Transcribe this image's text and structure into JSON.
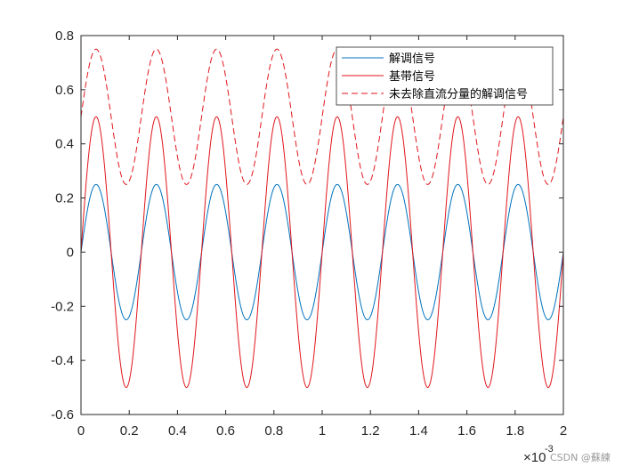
{
  "chart_data": {
    "type": "line",
    "title": "",
    "xlabel": "",
    "ylabel": "",
    "xlim": [
      0,
      2
    ],
    "ylim": [
      -0.6,
      0.8
    ],
    "x_exponent_label": "×10",
    "x_exponent_power": "-3",
    "xticks": [
      {
        "v": 0,
        "label": "0"
      },
      {
        "v": 0.2,
        "label": "0.2"
      },
      {
        "v": 0.4,
        "label": "0.4"
      },
      {
        "v": 0.6,
        "label": "0.6"
      },
      {
        "v": 0.8,
        "label": "0.8"
      },
      {
        "v": 1.0,
        "label": "1"
      },
      {
        "v": 1.2,
        "label": "1.2"
      },
      {
        "v": 1.4,
        "label": "1.4"
      },
      {
        "v": 1.6,
        "label": "1.6"
      },
      {
        "v": 1.8,
        "label": "1.8"
      },
      {
        "v": 2.0,
        "label": "2"
      }
    ],
    "yticks": [
      {
        "v": -0.6,
        "label": "-0.6"
      },
      {
        "v": -0.4,
        "label": "-0.4"
      },
      {
        "v": -0.2,
        "label": "-0.2"
      },
      {
        "v": 0,
        "label": "0"
      },
      {
        "v": 0.2,
        "label": "0.2"
      },
      {
        "v": 0.4,
        "label": "0.4"
      },
      {
        "v": 0.6,
        "label": "0.6"
      },
      {
        "v": 0.8,
        "label": "0.8"
      }
    ],
    "grid": false,
    "legend_position": "top-right",
    "series": [
      {
        "name": "解调信号",
        "color": "#0072BD",
        "style": "solid",
        "amplitude": 0.25,
        "offset": 0,
        "period": 0.25,
        "peak_at": 0.0625
      },
      {
        "name": "基带信号",
        "color": "#E0161C",
        "style": "solid",
        "amplitude": 0.5,
        "offset": 0,
        "period": 0.25,
        "peak_at": 0.0625
      },
      {
        "name": "未去除直流分量的解调信号",
        "color": "#E0161C",
        "style": "dashed",
        "amplitude": 0.25,
        "offset": 0.5,
        "period": 0.25,
        "peak_at": 0.0625
      }
    ]
  },
  "watermark": "CSDN @蘇練"
}
